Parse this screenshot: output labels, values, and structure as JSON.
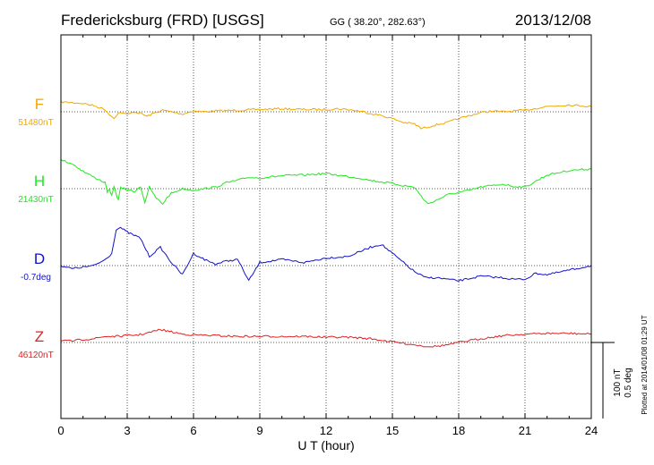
{
  "chart_data": {
    "type": "line",
    "title": "Fredericksburg (FRD)  [USGS]",
    "subtitle": "GG ( 38.20°, 282.63°)",
    "date": "2013/12/08",
    "xlabel": "U T (hour)",
    "xlim": [
      0,
      24
    ],
    "x_ticks": [
      0,
      3,
      6,
      9,
      12,
      15,
      18,
      21,
      24
    ],
    "x_tick_labels": [
      "0",
      "3",
      "6",
      "9",
      "12",
      "15",
      "18",
      "21",
      "24"
    ],
    "scale_labels": [
      "100 nT",
      "0.5 deg"
    ],
    "plotted_note": "Plotted at 2014/01/08 01:29 UT",
    "grid": true,
    "series": [
      {
        "name": "F",
        "baseline_label": "51480nT",
        "color": "#f0a800",
        "units": "nT",
        "x": [
          0,
          0.5,
          1,
          1.5,
          2,
          2.2,
          2.4,
          2.6,
          2.8,
          3,
          3.3,
          3.6,
          3.9,
          4.2,
          4.6,
          5,
          5.5,
          6,
          6.5,
          7,
          8,
          9,
          10,
          11,
          12,
          12.5,
          13,
          13.5,
          14,
          14.5,
          15,
          15.5,
          16,
          16.3,
          16.6,
          17,
          17.5,
          18,
          18.5,
          19,
          19.5,
          20,
          21,
          22,
          23,
          24
        ],
        "values": [
          13,
          12,
          11,
          8,
          3,
          -4,
          -8,
          -2,
          -1,
          -4,
          0,
          -2,
          -6,
          -2,
          2,
          0,
          -3,
          1,
          0,
          1,
          2,
          3,
          4,
          3,
          3,
          4,
          3,
          1,
          -2,
          -5,
          -9,
          -14,
          -16,
          -22,
          -20,
          -17,
          -14,
          -9,
          -5,
          -1,
          1,
          0,
          2,
          7,
          9,
          7
        ]
      },
      {
        "name": "H",
        "baseline_label": "21430nT",
        "color": "#22e622",
        "units": "nT",
        "x": [
          0,
          0.5,
          1,
          1.5,
          2,
          2.1,
          2.2,
          2.3,
          2.4,
          2.5,
          2.6,
          2.7,
          3,
          3.3,
          3.6,
          3.8,
          4,
          4.3,
          4.6,
          4.8,
          5,
          5.5,
          6,
          6.5,
          7,
          7.5,
          8,
          8.5,
          9,
          10,
          11,
          11.5,
          12,
          12.5,
          13,
          13.5,
          14,
          14.5,
          15,
          15.5,
          16,
          16.3,
          16.6,
          17,
          17.5,
          18,
          18.5,
          19,
          20,
          20.5,
          21,
          21.5,
          22,
          23,
          24
        ],
        "values": [
          38,
          33,
          23,
          15,
          8,
          -4,
          -2,
          -10,
          4,
          -8,
          -14,
          1,
          -1,
          -4,
          3,
          -18,
          2,
          -12,
          -20,
          -12,
          -6,
          0,
          -2,
          0,
          2,
          8,
          11,
          15,
          14,
          17,
          18,
          19,
          20,
          18,
          16,
          14,
          11,
          9,
          7,
          4,
          2,
          -10,
          -20,
          -15,
          -8,
          -5,
          -2,
          2,
          6,
          3,
          2,
          10,
          18,
          24,
          26
        ]
      },
      {
        "name": "D",
        "baseline_label": "-0.7deg",
        "color": "#1111cc",
        "units": "deg",
        "x": [
          0,
          0.5,
          1,
          1.5,
          2,
          2.3,
          2.5,
          2.7,
          3,
          3.3,
          3.6,
          4,
          4.5,
          5,
          5.5,
          6,
          6.5,
          7,
          7.5,
          8,
          8.5,
          9,
          10,
          11,
          12,
          13,
          14,
          14.5,
          15,
          15.5,
          16,
          16.5,
          17,
          18,
          19,
          20,
          20.5,
          21,
          21.5,
          22,
          23,
          24
        ],
        "values": [
          0,
          -0.02,
          -0.01,
          0,
          0.04,
          0.08,
          0.24,
          0.25,
          0.22,
          0.2,
          0.18,
          0.06,
          0.12,
          0.02,
          -0.06,
          0.08,
          0.04,
          0.01,
          0.03,
          0.04,
          -0.1,
          0.02,
          0.04,
          0.02,
          0.05,
          0.06,
          0.12,
          0.14,
          0.08,
          0.02,
          -0.04,
          -0.08,
          -0.08,
          -0.1,
          -0.07,
          -0.08,
          -0.09,
          -0.09,
          -0.05,
          -0.06,
          -0.03,
          0
        ]
      },
      {
        "name": "Z",
        "baseline_label": "46120nT",
        "color": "#e02020",
        "units": "nT",
        "x": [
          0,
          0.5,
          1,
          1.5,
          2,
          2.5,
          3,
          3.5,
          4,
          4.5,
          5,
          5.5,
          6,
          7,
          8,
          9,
          10,
          11,
          12,
          13,
          14,
          14.5,
          15,
          15.5,
          16,
          16.5,
          17,
          17.5,
          18,
          19,
          20,
          21,
          22,
          23,
          24
        ],
        "values": [
          2,
          2,
          4,
          5,
          8,
          8,
          9,
          10,
          13,
          17,
          14,
          11,
          10,
          9,
          8,
          8,
          8,
          8,
          7,
          7,
          5,
          3,
          1,
          -1,
          -3,
          -5,
          -5,
          -3,
          0,
          5,
          9,
          11,
          12,
          12,
          11
        ]
      }
    ]
  }
}
